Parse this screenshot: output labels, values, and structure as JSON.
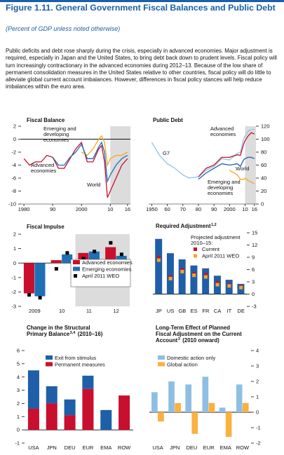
{
  "header": {
    "title": "Figure 1.11.  General Government Fiscal Balances and Public Debt",
    "subtitle": "(Percent of GDP unless noted otherwise)",
    "paragraph": "Public deficits and debt rose sharply during the crisis, especially in advanced economies. Major adjustment is required, especially in Japan and the United States, to bring debt back down to prudent levels. Fiscal policy will turn increasingly contractionary in the advanced economies during 2012–13. Because of the low share of permanent consolidation measures in the United States relative to other countries, fiscal policy will do little to alleviate global current account imbalances. However, differences in fiscal policy stances will help reduce imbalances within the euro area."
  },
  "chart_data": [
    {
      "type": "line",
      "title": "Fiscal Balance",
      "yaxis_side": "left",
      "x": [
        1980,
        1982,
        1984,
        1986,
        1988,
        1990,
        1992,
        1994,
        1996,
        1998,
        2000,
        2002,
        2004,
        2006,
        2007,
        2008,
        2009,
        2010,
        2012,
        2014,
        2016
      ],
      "xlim": [
        1979,
        2017
      ],
      "xticks": [
        {
          "value": 1980,
          "label": "1980"
        },
        {
          "value": 1990,
          "label": "90"
        },
        2000,
        {
          "value": 2010,
          "label": "10"
        },
        {
          "value": 2016,
          "label": "16"
        }
      ],
      "ylim": [
        -10,
        2
      ],
      "yticks": [
        -10,
        -8,
        -6,
        -4,
        -2,
        0,
        2
      ],
      "shaded_xlim": [
        2010,
        2017
      ],
      "series": [
        {
          "name": "Advanced economies",
          "color": "#c8102e",
          "values": [
            -3,
            -4,
            -3.5,
            -3.5,
            -2.5,
            -2.8,
            -4.5,
            -4.5,
            -3,
            -1.5,
            -0.5,
            -3.5,
            -3.5,
            -1.5,
            -1,
            -3.5,
            -9,
            -8,
            -6,
            -4,
            -3
          ]
        },
        {
          "name": "Emerging and developing economies",
          "color": "#f5a623",
          "values": [
            null,
            null,
            null,
            null,
            null,
            null,
            null,
            null,
            null,
            null,
            -2,
            -2.5,
            -1.5,
            0,
            0.5,
            -0.5,
            -4,
            -3,
            -2.5,
            -2.5,
            -2
          ]
        },
        {
          "name": "World",
          "color": "#1f6fb5",
          "values": [
            null,
            null,
            null,
            null,
            null,
            -2.8,
            -4,
            -4,
            -2.8,
            -2,
            -0.8,
            -3,
            -3,
            -1.2,
            -0.5,
            -2,
            -6.5,
            -5.5,
            -4,
            -3,
            -2.5
          ]
        }
      ]
    },
    {
      "type": "line",
      "title": "Public Debt",
      "yaxis_side": "right",
      "x": [
        1950,
        1955,
        1960,
        1965,
        1970,
        1974,
        1980,
        1985,
        1990,
        1995,
        2000,
        2005,
        2007,
        2009,
        2010,
        2012,
        2014,
        2016
      ],
      "xlim": [
        1948,
        2017
      ],
      "xticks": [
        1950,
        {
          "value": 1960,
          "label": "60"
        },
        {
          "value": 1970,
          "label": "70"
        },
        {
          "value": 1980,
          "label": "80"
        },
        {
          "value": 1990,
          "label": "90"
        },
        2000,
        {
          "value": 2010,
          "label": "10"
        },
        {
          "value": 2016,
          "label": "16"
        }
      ],
      "ylim": [
        0,
        120
      ],
      "yticks": [
        0,
        20,
        40,
        60,
        80,
        100,
        120
      ],
      "shaded_xlim": [
        2010,
        2017
      ],
      "series": [
        {
          "name": "G7",
          "color": "#8ec3e6",
          "values": [
            95,
            75,
            62,
            55,
            45,
            40,
            42,
            52,
            58,
            70,
            68,
            78,
            80,
            100,
            105,
            112,
            115,
            115
          ]
        },
        {
          "name": "Advanced economies",
          "color": "#c8102e",
          "values": [
            null,
            null,
            null,
            null,
            null,
            null,
            42,
            55,
            60,
            72,
            72,
            76,
            75,
            92,
            98,
            105,
            110,
            108
          ]
        },
        {
          "name": "World",
          "color": "#1f5fa8",
          "values": [
            null,
            null,
            null,
            null,
            null,
            null,
            38,
            48,
            55,
            62,
            60,
            62,
            58,
            68,
            70,
            72,
            72,
            70
          ]
        },
        {
          "name": "Emerging and developing economies",
          "color": "#f5a623",
          "values": [
            null,
            null,
            null,
            null,
            null,
            null,
            null,
            null,
            null,
            null,
            52,
            45,
            38,
            38,
            40,
            36,
            34,
            31
          ]
        }
      ]
    },
    {
      "type": "bar",
      "title": "Fiscal Impulse",
      "yaxis_side": "left",
      "categories": [
        "2009",
        "10",
        "11",
        "12"
      ],
      "ylim": [
        -3,
        2
      ],
      "yticks": [
        -3,
        -2,
        -1,
        0,
        1,
        2
      ],
      "series": [
        {
          "name": "Advanced economies",
          "color": "#c8102e",
          "values": [
            -2.1,
            0.2,
            0.7,
            1.1
          ]
        },
        {
          "name": "Emerging economies",
          "color": "#1f6fb5",
          "values": [
            -2.3,
            0.6,
            0.8,
            0.5
          ]
        },
        {
          "name": "April 2011 WEO",
          "color": "#000000",
          "marker": "square",
          "values": [
            [
              -2.2,
              -2.4
            ],
            [
              -0.4,
              0.7
            ],
            [
              0.3,
              0.8
            ],
            [
              1.4,
              0.6
            ]
          ]
        }
      ]
    },
    {
      "type": "bar",
      "title": "Required Adjustment",
      "title_note": "1,2",
      "yaxis_side": "right",
      "categories": [
        "JP",
        "US",
        "GB",
        "ES",
        "FR",
        "CA",
        "IT",
        "DE"
      ],
      "ylim": [
        -3,
        15
      ],
      "yticks": [
        -3,
        0,
        3,
        6,
        9,
        12,
        15
      ],
      "series": [
        {
          "name": "Projected adjustment 2010–15:",
          "color": "#1f5fa8",
          "values": [
            13.5,
            10,
            8.5,
            7,
            6.3,
            4.5,
            3.5,
            2.5
          ]
        },
        {
          "name": "Current",
          "color": "#c8102e",
          "marker": "square",
          "values": [
            9,
            4.2,
            6,
            5,
            4.8,
            2.8,
            2.3,
            1.8
          ]
        },
        {
          "name": "April 2011 WEO",
          "color": "#f5a623",
          "marker": "square",
          "values": [
            8.3,
            3.8,
            5.5,
            4.6,
            4.2,
            2.3,
            2.0,
            1.6
          ]
        }
      ]
    },
    {
      "type": "bar",
      "stacked": true,
      "title": "Change in the Structural Primary Balance",
      "title_note": "3,4",
      "subtitle": "(2010–16)",
      "yaxis_side": "left",
      "categories": [
        "USA",
        "JPN",
        "DEU",
        "EUR",
        "EMA",
        "ROW"
      ],
      "ylim": [
        -1,
        6
      ],
      "yticks": [
        -1,
        0,
        1,
        2,
        3,
        4,
        5,
        6
      ],
      "series": [
        {
          "name": "Exit from stimulus",
          "color": "#1f5fa8",
          "values": [
            2.9,
            1.3,
            1.2,
            1.0,
            1.5,
            0
          ]
        },
        {
          "name": "Permanent measures",
          "color": "#c8102e",
          "values": [
            1.6,
            2.0,
            1.1,
            3.1,
            0,
            2.6
          ]
        }
      ]
    },
    {
      "type": "bar",
      "title": "Long-Term Effect of Planned Fiscal Adjustment on the Current Account",
      "title_note": "3",
      "subtitle": "(2010 onward)",
      "yaxis_side": "right",
      "categories": [
        "USA",
        "JPN",
        "DEU",
        "EUR",
        "EMA",
        "ROW"
      ],
      "ylim": [
        -2,
        4
      ],
      "yticks": [
        -2,
        -1,
        0,
        1,
        2,
        3,
        4
      ],
      "series": [
        {
          "name": "Domestic action only",
          "color": "#8ebfe3",
          "values": [
            1.3,
            2.0,
            1.8,
            2.3,
            0.3,
            1.8
          ]
        },
        {
          "name": "Global action",
          "color": "#fbb040",
          "values": [
            -0.6,
            0.6,
            -1.4,
            0.6,
            -1.6,
            0.6
          ]
        }
      ]
    }
  ]
}
